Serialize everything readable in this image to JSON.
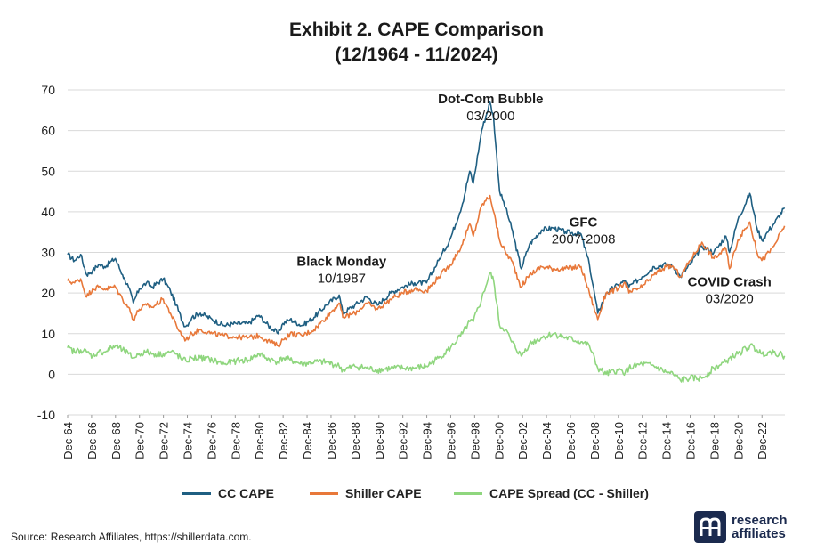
{
  "title_line1": "Exhibit 2. CAPE Comparison",
  "title_line2": "(12/1964 - 11/2024)",
  "source": "Source: Research Affiliates, https://shillerdata.com.",
  "logo": {
    "line1": "research",
    "line2": "affiliates",
    "mark": "®"
  },
  "colors": {
    "cc": "#1f5f82",
    "shiller": "#e8783a",
    "spread": "#8fd67e",
    "grid": "#d9d9d9"
  },
  "chart_data": {
    "type": "line",
    "ylim": [
      -10,
      70
    ],
    "yticks": [
      -10,
      0,
      10,
      20,
      30,
      40,
      50,
      60,
      70
    ],
    "xlim": [
      1964.917,
      2024.833
    ],
    "xticks": [
      {
        "x": 1964.917,
        "label": "Dec-64"
      },
      {
        "x": 1966.917,
        "label": "Dec-66"
      },
      {
        "x": 1968.917,
        "label": "Dec-68"
      },
      {
        "x": 1970.917,
        "label": "Dec-70"
      },
      {
        "x": 1972.917,
        "label": "Dec-72"
      },
      {
        "x": 1974.917,
        "label": "Dec-74"
      },
      {
        "x": 1976.917,
        "label": "Dec-76"
      },
      {
        "x": 1978.917,
        "label": "Dec-78"
      },
      {
        "x": 1980.917,
        "label": "Dec-80"
      },
      {
        "x": 1982.917,
        "label": "Dec-82"
      },
      {
        "x": 1984.917,
        "label": "Dec-84"
      },
      {
        "x": 1986.917,
        "label": "Dec-86"
      },
      {
        "x": 1988.917,
        "label": "Dec-88"
      },
      {
        "x": 1990.917,
        "label": "Dec-90"
      },
      {
        "x": 1992.917,
        "label": "Dec-92"
      },
      {
        "x": 1994.917,
        "label": "Dec-94"
      },
      {
        "x": 1996.917,
        "label": "Dec-96"
      },
      {
        "x": 1998.917,
        "label": "Dec-98"
      },
      {
        "x": 2000.917,
        "label": "Dec-00"
      },
      {
        "x": 2002.917,
        "label": "Dec-02"
      },
      {
        "x": 2004.917,
        "label": "Dec-04"
      },
      {
        "x": 2006.917,
        "label": "Dec-06"
      },
      {
        "x": 2008.917,
        "label": "Dec-08"
      },
      {
        "x": 2010.917,
        "label": "Dec-10"
      },
      {
        "x": 2012.917,
        "label": "Dec-12"
      },
      {
        "x": 2014.917,
        "label": "Dec-14"
      },
      {
        "x": 2016.917,
        "label": "Dec-16"
      },
      {
        "x": 2018.917,
        "label": "Dec-18"
      },
      {
        "x": 2020.917,
        "label": "Dec-20"
      },
      {
        "x": 2022.917,
        "label": "Dec-22"
      }
    ],
    "grid": true,
    "legend": "bottom",
    "series": [
      {
        "name": "CC CAPE",
        "color": "#1f5f82",
        "points": [
          [
            1964.9,
            29.5
          ],
          [
            1965.5,
            28
          ],
          [
            1966,
            29.5
          ],
          [
            1966.5,
            24.5
          ],
          [
            1967,
            25.5
          ],
          [
            1967.5,
            27
          ],
          [
            1968,
            26.5
          ],
          [
            1968.9,
            28.5
          ],
          [
            1969.5,
            24.5
          ],
          [
            1970,
            21.5
          ],
          [
            1970.4,
            17.5
          ],
          [
            1970.9,
            21
          ],
          [
            1971.5,
            22.5
          ],
          [
            1972,
            21.5
          ],
          [
            1972.9,
            23.5
          ],
          [
            1973.5,
            20.5
          ],
          [
            1974,
            17
          ],
          [
            1974.5,
            13
          ],
          [
            1974.8,
            11.8
          ],
          [
            1975.3,
            14
          ],
          [
            1976,
            15
          ],
          [
            1977,
            13.5
          ],
          [
            1978,
            12
          ],
          [
            1979,
            12.5
          ],
          [
            1980,
            12.5
          ],
          [
            1980.9,
            14.5
          ],
          [
            1981.5,
            12.5
          ],
          [
            1982.5,
            10
          ],
          [
            1982.9,
            12.5
          ],
          [
            1983.5,
            13.5
          ],
          [
            1984.5,
            12
          ],
          [
            1985.5,
            14
          ],
          [
            1986.5,
            17
          ],
          [
            1987.6,
            19.5
          ],
          [
            1987.9,
            15
          ],
          [
            1988.9,
            17
          ],
          [
            1989.9,
            19
          ],
          [
            1990.8,
            17
          ],
          [
            1991.9,
            20
          ],
          [
            1992.9,
            21.5
          ],
          [
            1993.9,
            22.5
          ],
          [
            1994.9,
            22.5
          ],
          [
            1995.9,
            28
          ],
          [
            1996.9,
            33.5
          ],
          [
            1997.9,
            42
          ],
          [
            1998.5,
            50
          ],
          [
            1998.8,
            47
          ],
          [
            1999.5,
            60
          ],
          [
            2000.2,
            67
          ],
          [
            2000.5,
            63
          ],
          [
            2001,
            45
          ],
          [
            2001.5,
            41
          ],
          [
            2002,
            36
          ],
          [
            2002.8,
            26
          ],
          [
            2003.5,
            32
          ],
          [
            2004.5,
            35.5
          ],
          [
            2005.5,
            36
          ],
          [
            2006.5,
            35
          ],
          [
            2007.8,
            34.5
          ],
          [
            2008.5,
            27
          ],
          [
            2009.2,
            15
          ],
          [
            2009.9,
            20
          ],
          [
            2010.9,
            22
          ],
          [
            2011.5,
            23
          ],
          [
            2011.8,
            21.5
          ],
          [
            2012.9,
            24
          ],
          [
            2013.9,
            26.5
          ],
          [
            2014.9,
            27
          ],
          [
            2015.5,
            26.5
          ],
          [
            2016.1,
            24
          ],
          [
            2016.9,
            27
          ],
          [
            2017.9,
            31.5
          ],
          [
            2018.9,
            30
          ],
          [
            2019.9,
            34
          ],
          [
            2020.2,
            30
          ],
          [
            2020.9,
            38
          ],
          [
            2021.9,
            44.5
          ],
          [
            2022.5,
            36
          ],
          [
            2022.9,
            33
          ],
          [
            2023.5,
            35.5
          ],
          [
            2023.9,
            37
          ],
          [
            2024.8,
            41
          ]
        ]
      },
      {
        "name": "Shiller CAPE",
        "color": "#e8783a",
        "points": [
          [
            1964.9,
            23
          ],
          [
            1965.5,
            22.5
          ],
          [
            1966,
            23.5
          ],
          [
            1966.5,
            19
          ],
          [
            1967,
            21
          ],
          [
            1967.5,
            21.5
          ],
          [
            1968,
            21
          ],
          [
            1968.9,
            21.5
          ],
          [
            1969.5,
            18.5
          ],
          [
            1970,
            16.5
          ],
          [
            1970.4,
            13.5
          ],
          [
            1970.9,
            16
          ],
          [
            1971.5,
            17
          ],
          [
            1972,
            16.5
          ],
          [
            1972.9,
            18.5
          ],
          [
            1973.5,
            15
          ],
          [
            1974,
            12
          ],
          [
            1974.5,
            9.5
          ],
          [
            1974.8,
            8.5
          ],
          [
            1975.3,
            10
          ],
          [
            1976,
            11
          ],
          [
            1977,
            10
          ],
          [
            1978,
            9.5
          ],
          [
            1979,
            9.2
          ],
          [
            1980,
            9
          ],
          [
            1980.9,
            9.5
          ],
          [
            1981.5,
            8.5
          ],
          [
            1982.5,
            7
          ],
          [
            1982.9,
            8.5
          ],
          [
            1983.5,
            10
          ],
          [
            1984.5,
            9.5
          ],
          [
            1985.5,
            11
          ],
          [
            1986.5,
            14
          ],
          [
            1987.6,
            17.5
          ],
          [
            1987.9,
            14
          ],
          [
            1988.9,
            15
          ],
          [
            1989.9,
            17.5
          ],
          [
            1990.8,
            16
          ],
          [
            1991.9,
            18.5
          ],
          [
            1992.9,
            20
          ],
          [
            1993.9,
            21
          ],
          [
            1994.9,
            20.5
          ],
          [
            1995.9,
            24
          ],
          [
            1996.9,
            27
          ],
          [
            1997.9,
            32
          ],
          [
            1998.5,
            37
          ],
          [
            1998.8,
            34
          ],
          [
            1999.5,
            41.5
          ],
          [
            2000.2,
            44
          ],
          [
            2000.5,
            40
          ],
          [
            2001,
            33
          ],
          [
            2001.5,
            30
          ],
          [
            2002,
            28
          ],
          [
            2002.8,
            21.5
          ],
          [
            2003.5,
            24.5
          ],
          [
            2004.5,
            26.5
          ],
          [
            2005.5,
            26
          ],
          [
            2006.5,
            26
          ],
          [
            2007.8,
            26.5
          ],
          [
            2008.5,
            20
          ],
          [
            2009.2,
            13.5
          ],
          [
            2009.9,
            20
          ],
          [
            2010.9,
            21
          ],
          [
            2011.5,
            22.5
          ],
          [
            2011.8,
            20
          ],
          [
            2012.9,
            21.5
          ],
          [
            2013.9,
            24.5
          ],
          [
            2014.9,
            26.5
          ],
          [
            2015.5,
            26.5
          ],
          [
            2016.1,
            24
          ],
          [
            2016.9,
            28
          ],
          [
            2017.9,
            32.5
          ],
          [
            2018.9,
            28.5
          ],
          [
            2019.9,
            31
          ],
          [
            2020.2,
            26
          ],
          [
            2020.9,
            33
          ],
          [
            2021.9,
            37.5
          ],
          [
            2022.5,
            30
          ],
          [
            2022.9,
            28
          ],
          [
            2023.5,
            30
          ],
          [
            2023.9,
            31.5
          ],
          [
            2024.8,
            36.5
          ]
        ]
      },
      {
        "name": "CAPE Spread (CC - Shiller)",
        "color": "#8fd67e",
        "points": [
          [
            1964.9,
            6.5
          ],
          [
            1965.5,
            5.5
          ],
          [
            1966,
            6
          ],
          [
            1966.5,
            5.5
          ],
          [
            1967,
            4.5
          ],
          [
            1967.5,
            5.5
          ],
          [
            1968,
            5.5
          ],
          [
            1968.9,
            7
          ],
          [
            1969.5,
            6
          ],
          [
            1970,
            5
          ],
          [
            1970.4,
            4
          ],
          [
            1970.9,
            5
          ],
          [
            1971.5,
            5.5
          ],
          [
            1972,
            5
          ],
          [
            1972.9,
            5
          ],
          [
            1973.5,
            5.5
          ],
          [
            1974,
            5
          ],
          [
            1974.5,
            3.5
          ],
          [
            1974.8,
            3.3
          ],
          [
            1975.3,
            4
          ],
          [
            1976,
            4
          ],
          [
            1977,
            3.5
          ],
          [
            1978,
            2.5
          ],
          [
            1979,
            3.3
          ],
          [
            1980,
            3.5
          ],
          [
            1980.9,
            5
          ],
          [
            1981.5,
            4
          ],
          [
            1982.5,
            3
          ],
          [
            1982.9,
            4
          ],
          [
            1983.5,
            3.5
          ],
          [
            1984.5,
            2.5
          ],
          [
            1985.5,
            3
          ],
          [
            1986.5,
            3
          ],
          [
            1987.6,
            2
          ],
          [
            1987.9,
            1
          ],
          [
            1988.9,
            2
          ],
          [
            1989.9,
            1.5
          ],
          [
            1990.8,
            1
          ],
          [
            1991.9,
            1.5
          ],
          [
            1992.9,
            1.5
          ],
          [
            1993.9,
            1.5
          ],
          [
            1994.9,
            2
          ],
          [
            1995.9,
            4
          ],
          [
            1996.9,
            6.5
          ],
          [
            1997.9,
            10
          ],
          [
            1998.5,
            13
          ],
          [
            1998.8,
            13
          ],
          [
            1999.5,
            18.5
          ],
          [
            2000.2,
            25
          ],
          [
            2000.5,
            23
          ],
          [
            2001,
            12
          ],
          [
            2001.5,
            11
          ],
          [
            2002,
            8
          ],
          [
            2002.8,
            4.5
          ],
          [
            2003.5,
            7.5
          ],
          [
            2004.5,
            9
          ],
          [
            2005.5,
            10
          ],
          [
            2006.5,
            9
          ],
          [
            2007.8,
            8
          ],
          [
            2008.5,
            7
          ],
          [
            2009.2,
            1.5
          ],
          [
            2009.9,
            0
          ],
          [
            2010.9,
            1
          ],
          [
            2011.5,
            0.5
          ],
          [
            2011.8,
            1.5
          ],
          [
            2012.9,
            2.5
          ],
          [
            2013.9,
            2
          ],
          [
            2014.9,
            0.5
          ],
          [
            2015.5,
            0
          ],
          [
            2016.1,
            -1.5
          ],
          [
            2016.9,
            -1
          ],
          [
            2017.9,
            -1
          ],
          [
            2018.9,
            1.5
          ],
          [
            2019.9,
            3
          ],
          [
            2020.2,
            4
          ],
          [
            2020.9,
            5
          ],
          [
            2021.9,
            7
          ],
          [
            2022.5,
            6
          ],
          [
            2022.9,
            5
          ],
          [
            2023.5,
            5.5
          ],
          [
            2023.9,
            5.5
          ],
          [
            2024.8,
            4.5
          ]
        ]
      }
    ],
    "annotations": [
      {
        "x": 2000.25,
        "y": 64.5,
        "line1": "Dot-Com Bubble",
        "line2": "03/2000"
      },
      {
        "x": 1987.8,
        "y": 24.5,
        "line1": "Black Monday",
        "line2": "10/1987"
      },
      {
        "x": 2008.0,
        "y": 34.2,
        "line1": "GFC",
        "line2": "2007-2008"
      },
      {
        "x": 2020.2,
        "y": 19.5,
        "line1": "COVID Crash",
        "line2": "03/2020"
      }
    ]
  }
}
